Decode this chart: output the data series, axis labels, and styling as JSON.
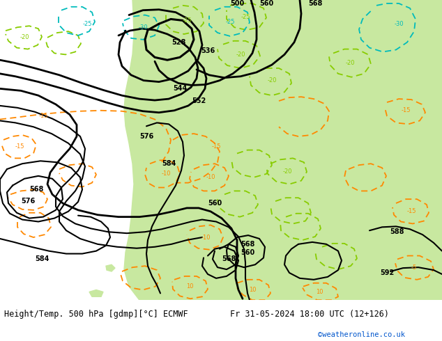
{
  "title_left": "Height/Temp. 500 hPa [gdmp][°C] ECMWF",
  "title_right": "Fr 31-05-2024 18:00 UTC (12+126)",
  "credit": "©weatheronline.co.uk",
  "bg_ocean_color": "#d8d8d8",
  "bg_land_color": "#c8e8a0",
  "bg_gray_terrain": "#b8b8b8",
  "bottom_bar_color": "#ffffff",
  "text_color": "#000000",
  "credit_color": "#0055cc",
  "contour_color": "#000000",
  "temp_neg_color": "#ff8800",
  "temp_pos_color": "#88cc00",
  "temp_cold_color": "#00bbbb",
  "figsize": [
    6.34,
    4.9
  ],
  "dpi": 100
}
